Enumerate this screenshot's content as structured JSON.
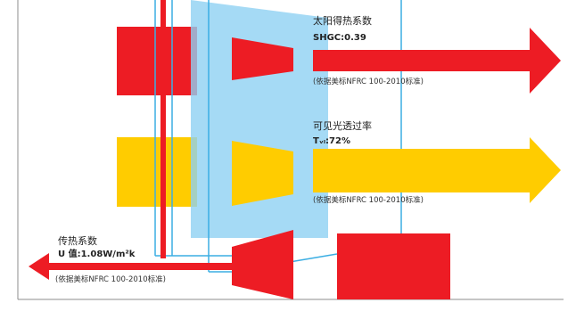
{
  "colors": {
    "red": "#ED1C24",
    "yellow": "#FFCC00",
    "glass": "#8ED1F2",
    "frame": "#3BAEE3",
    "border": "#8C8C8C"
  },
  "shgc": {
    "title": "太阳得热系数",
    "value": "SHGC:0.39",
    "note": "(依据美标NFRC 100-2010标准)"
  },
  "visible": {
    "title": "可见光透过率",
    "value": "Tᵥₗ:72%",
    "note": "(依据美标NFRC 100-2010标准)"
  },
  "uvalue": {
    "title": "传热系数",
    "value": "U 值:1.08W/m²k",
    "note": "(依据美标NFRC 100-2010标准)"
  }
}
